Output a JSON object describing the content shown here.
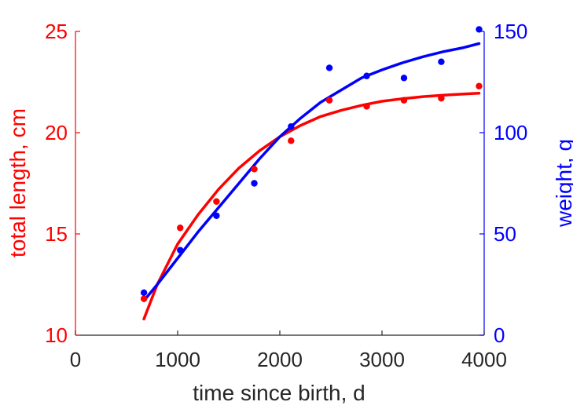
{
  "chart_data": {
    "type": "scatter",
    "xlabel": "time since birth, d",
    "ylabel_left": "total length, cm",
    "ylabel_right": "weight, g",
    "xlim": [
      0,
      4000
    ],
    "ylim_left": [
      10,
      25
    ],
    "ylim_right": [
      0,
      150
    ],
    "xticks": [
      "0",
      "1000",
      "2000",
      "3000",
      "4000"
    ],
    "yticks_left": [
      "10",
      "15",
      "20",
      "25"
    ],
    "yticks_right": [
      "0",
      "50",
      "100",
      "150"
    ],
    "grid": false,
    "colors": {
      "length": "#ff0000",
      "weight": "#0000ff",
      "axis_x": "#262626"
    },
    "series": [
      {
        "axis": "left",
        "color": "#ff0000",
        "points": {
          "x": [
            670,
            1025,
            1380,
            1750,
            2110,
            2485,
            2850,
            3215,
            3580,
            3950
          ],
          "y": [
            11.8,
            15.3,
            16.6,
            18.2,
            19.6,
            21.6,
            21.3,
            21.6,
            21.7,
            22.3
          ]
        },
        "fit": {
          "x": [
            670,
            800,
            1000,
            1200,
            1400,
            1600,
            1800,
            2000,
            2200,
            2400,
            2600,
            2800,
            3000,
            3200,
            3400,
            3600,
            3800,
            3950
          ],
          "y": [
            10.8,
            12.5,
            14.5,
            15.95,
            17.2,
            18.25,
            19.1,
            19.8,
            20.35,
            20.8,
            21.1,
            21.35,
            21.55,
            21.68,
            21.78,
            21.85,
            21.91,
            21.95
          ]
        }
      },
      {
        "axis": "right",
        "color": "#0000ff",
        "points": {
          "x": [
            670,
            1025,
            1380,
            1750,
            2110,
            2485,
            2850,
            3215,
            3580,
            3950
          ],
          "y": [
            21,
            42,
            59,
            75,
            103,
            132,
            128,
            127,
            135,
            151
          ]
        },
        "fit": {
          "x": [
            670,
            800,
            1000,
            1200,
            1400,
            1600,
            1800,
            2000,
            2200,
            2400,
            2600,
            2800,
            3000,
            3200,
            3400,
            3600,
            3800,
            3950
          ],
          "y": [
            17,
            25,
            38,
            51,
            63,
            75,
            87,
            98,
            107,
            115,
            121,
            127,
            131,
            134.5,
            137.5,
            140,
            142,
            144
          ]
        }
      }
    ]
  }
}
